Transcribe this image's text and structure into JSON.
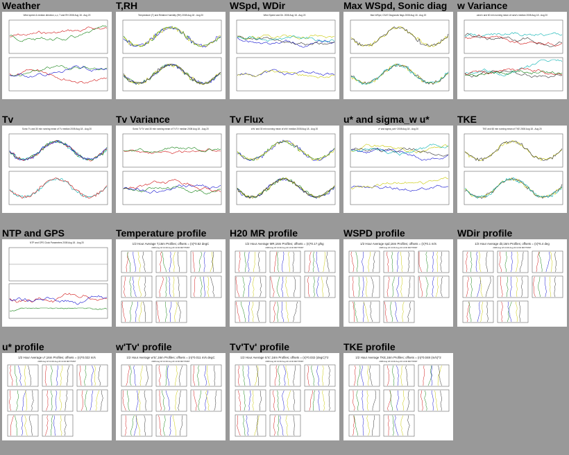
{
  "thumbnails": [
    {
      "title": "Weather",
      "kind": "ts",
      "header": "Wind speed & median direction, u,v, T and RH  2008 Aug 18 - Aug 20"
    },
    {
      "title": "T,RH",
      "kind": "ts",
      "header": "Temperature (T) and Relative Humidity (RH) 2008 Aug 18 - Aug 20"
    },
    {
      "title": "WSpd, WDir",
      "kind": "ts",
      "header": "Wind Speed and Dir.  2008 Aug 18 - Aug 20"
    },
    {
      "title": "Max WSpd, Sonic diag",
      "kind": "ts",
      "header": "Max WSpd, CSAT Diagnostic flags  2008 Aug 18 - Aug 20"
    },
    {
      "title": "w Variance",
      "kind": "ts",
      "header": "varw'v and 60 min running mean of varw'v median 2008 Aug 18 - Aug 20"
    },
    {
      "title": "Tv",
      "kind": "ts",
      "header": "Sonic Tv and 30 min running mean of Tv median 2008 Aug 18 - Aug 20"
    },
    {
      "title": "Tv Variance",
      "kind": "ts",
      "header": "Sonic Tv'Tv' and 30 min running mean of Tv'Tv' median 2008 Aug 18 - Aug 20"
    },
    {
      "title": "Tv Flux",
      "kind": "ts",
      "header": "w'tv' and 30 min running mean of w'tv' median 2008 Aug 18 - Aug 20"
    },
    {
      "title": "u* and sigma_w u*",
      "kind": "ts",
      "header": "u* and sigma_w/u*  2008 Aug 18 - Aug 20"
    },
    {
      "title": "TKE",
      "kind": "ts",
      "header": "TKE and 60 min running mean of TKE 2008 Aug 18 - Aug 20"
    },
    {
      "title": "NTP and GPS",
      "kind": "ntp",
      "header": "NTP and GPS Clock Parameters 2008 Aug 18 - Aug 20"
    },
    {
      "title": "Temperature profile",
      "kind": "prof",
      "header": "1/2 Hour Average T,16m Profiles; offsets = (n)*0.52 degC"
    },
    {
      "title": "H20 MR profile",
      "kind": "prof",
      "header": "1/2 Hour Average MR,16m Profiles; offsets = (n)*0.17 g/kg"
    },
    {
      "title": "WSPD profile",
      "kind": "prof",
      "header": "1/2 Hour Average spd,16m Profiles; offsets = (n)*0.1 m/s"
    },
    {
      "title": "WDir profile",
      "kind": "prof",
      "header": "1/2 Hour Average dir,16m Profiles; offsets = (n)*6.4 deg"
    },
    {
      "title": "u* profile",
      "kind": "prof",
      "header": "1/2 Hour Average u*,16m Profiles; offsets = (n)*0.022 m/s"
    },
    {
      "title": "w'Tv' profile",
      "kind": "prof",
      "header": "1/2 Hour Average w'tc',16m Profiles; offsets = (n)*0.011 m/s degC"
    },
    {
      "title": "Tv'Tv' profile",
      "kind": "prof",
      "header": "1/2 Hour Average tc'tc',16m Profiles; offsets = (n)*0.032 (degC)^2"
    },
    {
      "title": "TKE profile",
      "kind": "prof",
      "header": "1/2 Hour Average TKE,16m Profiles; offsets = (n)*0.048 (m/s)^2"
    }
  ],
  "profile_subheader": "2008 Aug 18 13:00 Aug 20 13:00 MDT?MDT",
  "trace_colors": [
    "#d01010",
    "#108010",
    "#1010d0",
    "#c8c800",
    "#303030",
    "#00b0b0"
  ]
}
